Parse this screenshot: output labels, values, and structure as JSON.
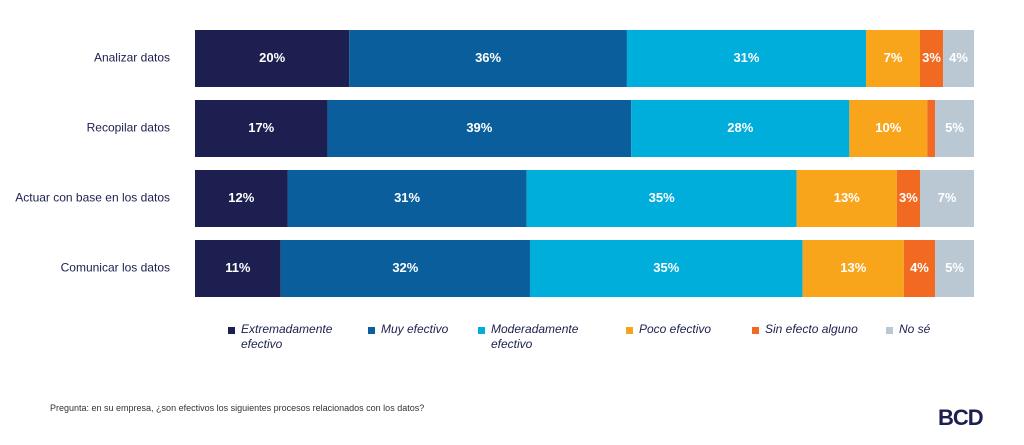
{
  "chart_data": {
    "type": "stacked-barh",
    "categories": [
      "Analizar datos",
      "Recopilar datos",
      "Actuar con base en los datos",
      "Comunicar los datos"
    ],
    "series": [
      {
        "name": "Extremadamente efectivo",
        "color": "#1c1f4f",
        "values": [
          20,
          17,
          12,
          11
        ],
        "value_labels": [
          "20%",
          "17%",
          "12%",
          "11%"
        ]
      },
      {
        "name": "Muy efectivo",
        "color": "#0a5e9b",
        "values": [
          36,
          39,
          31,
          32
        ],
        "value_labels": [
          "36%",
          "39%",
          "31%",
          "32%"
        ]
      },
      {
        "name": "Moderadamente efectivo",
        "color": "#00aedb",
        "values": [
          31,
          28,
          35,
          35
        ],
        "value_labels": [
          "31%",
          "28%",
          "35%",
          "35%"
        ]
      },
      {
        "name": "Poco efectivo",
        "color": "#f9a51c",
        "values": [
          7,
          10,
          13,
          13
        ],
        "value_labels": [
          "7%",
          "10%",
          "13%",
          "13%"
        ]
      },
      {
        "name": "Sin efecto alguno",
        "color": "#f26a22",
        "values": [
          3,
          1,
          3,
          4
        ],
        "value_labels": [
          "3%",
          null,
          "3%",
          "4%"
        ]
      },
      {
        "name": "No sé",
        "color": "#b9c8d3",
        "values": [
          4,
          5,
          7,
          5
        ],
        "value_labels": [
          "4%",
          "5%",
          "7%",
          "5%"
        ]
      }
    ],
    "note": "Pregunta: en su empresa, ¿son efectivos los siguientes procesos relacionados con los datos?"
  },
  "logo": "BCD"
}
